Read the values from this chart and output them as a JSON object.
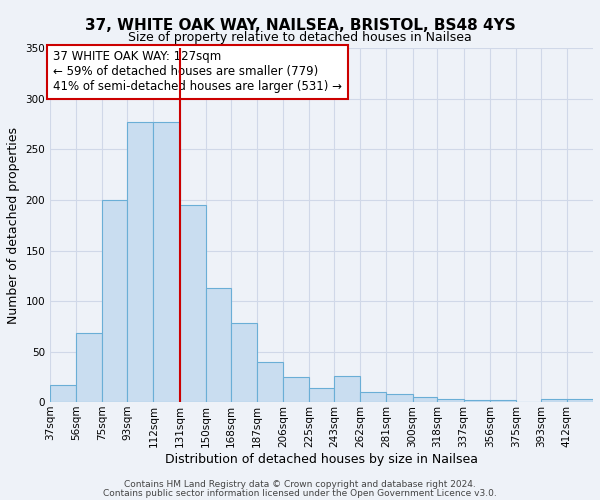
{
  "title": "37, WHITE OAK WAY, NAILSEA, BRISTOL, BS48 4YS",
  "subtitle": "Size of property relative to detached houses in Nailsea",
  "xlabel": "Distribution of detached houses by size in Nailsea",
  "ylabel": "Number of detached properties",
  "bar_color": "#c9ddf0",
  "bar_edge_color": "#6aaed6",
  "categories": [
    "37sqm",
    "56sqm",
    "75sqm",
    "93sqm",
    "112sqm",
    "131sqm",
    "150sqm",
    "168sqm",
    "187sqm",
    "206sqm",
    "225sqm",
    "243sqm",
    "262sqm",
    "281sqm",
    "300sqm",
    "318sqm",
    "337sqm",
    "356sqm",
    "375sqm",
    "393sqm",
    "412sqm"
  ],
  "values": [
    17,
    68,
    200,
    277,
    277,
    195,
    113,
    78,
    40,
    25,
    14,
    26,
    10,
    8,
    5,
    3,
    2,
    2,
    0,
    3,
    3
  ],
  "bin_edges": [
    37,
    56,
    75,
    93,
    112,
    131,
    150,
    168,
    187,
    206,
    225,
    243,
    262,
    281,
    300,
    318,
    337,
    356,
    375,
    393,
    412,
    431
  ],
  "ylim": [
    0,
    350
  ],
  "yticks": [
    0,
    50,
    100,
    150,
    200,
    250,
    300,
    350
  ],
  "vline_x": 131,
  "vline_color": "#cc0000",
  "annotation_text": "37 WHITE OAK WAY: 127sqm\n← 59% of detached houses are smaller (779)\n41% of semi-detached houses are larger (531) →",
  "annotation_box_color": "#ffffff",
  "annotation_box_edge": "#cc0000",
  "footer1": "Contains HM Land Registry data © Crown copyright and database right 2024.",
  "footer2": "Contains public sector information licensed under the Open Government Licence v3.0.",
  "background_color": "#eef2f8",
  "grid_color": "#d0d8e8",
  "title_fontsize": 11,
  "subtitle_fontsize": 9,
  "xlabel_fontsize": 9,
  "ylabel_fontsize": 9,
  "tick_fontsize": 7.5,
  "footer_fontsize": 6.5,
  "annotation_fontsize": 8.5
}
